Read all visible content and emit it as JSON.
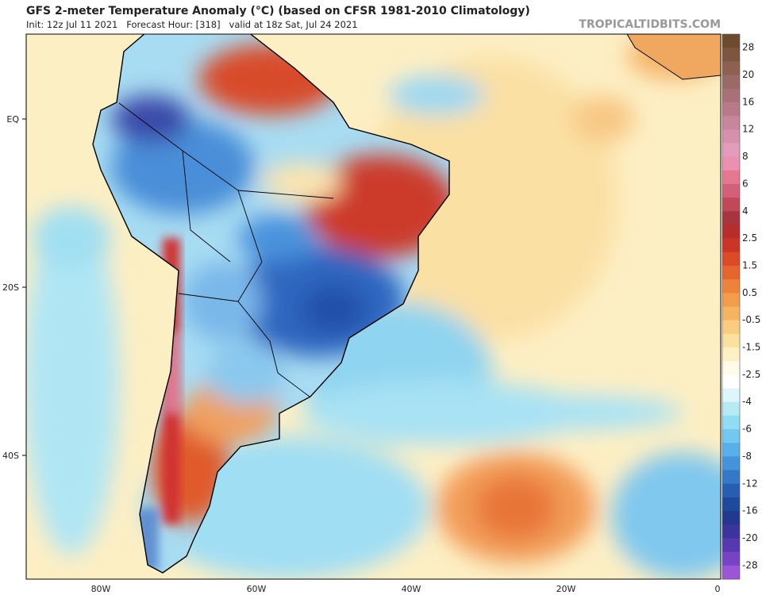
{
  "header": {
    "title": "GFS 2-meter Temperature Anomaly (°C) (based on CFSR 1981-2010 Climatology)",
    "subtitle": "Init: 12z Jul 11 2021   Forecast Hour: [318]   valid at 18z Sat, Jul 24 2021",
    "site": "TROPICALTIDBITS.COM"
  },
  "map": {
    "lat_labels": [
      "EQ",
      "20S",
      "40S"
    ],
    "lon_labels": [
      "80W",
      "60W",
      "40W",
      "20W",
      "0"
    ]
  },
  "colorbar": {
    "labels": [
      28,
      20,
      16,
      12,
      8,
      6,
      4,
      2.5,
      1.5,
      0.5,
      -0.5,
      -1.5,
      -2.5,
      -4,
      -6,
      -8,
      -12,
      -16,
      -20,
      -28
    ],
    "colors": [
      "#6e4a2e",
      "#7e5640",
      "#8e6052",
      "#9c6a66",
      "#aa7078",
      "#b87a8a",
      "#c8869c",
      "#d690ac",
      "#e49cbc",
      "#ec90b0",
      "#e47890",
      "#d46078",
      "#c04858",
      "#a83440",
      "#b82c2c",
      "#cc3428",
      "#dc4a28",
      "#e6642e",
      "#ee823a",
      "#f39c4c",
      "#f6b462",
      "#f9cc80",
      "#fbe09e",
      "#fdf0c4",
      "#fffbe8",
      "#ffffff",
      "#dcf6fa",
      "#b6eaf4",
      "#92dcf2",
      "#72c8ee",
      "#58b0e8",
      "#4494dc",
      "#3478c8",
      "#285eb2",
      "#1e4a9c",
      "#243890",
      "#3a349c",
      "#5638b0",
      "#7644c4",
      "#9a56d6"
    ]
  }
}
